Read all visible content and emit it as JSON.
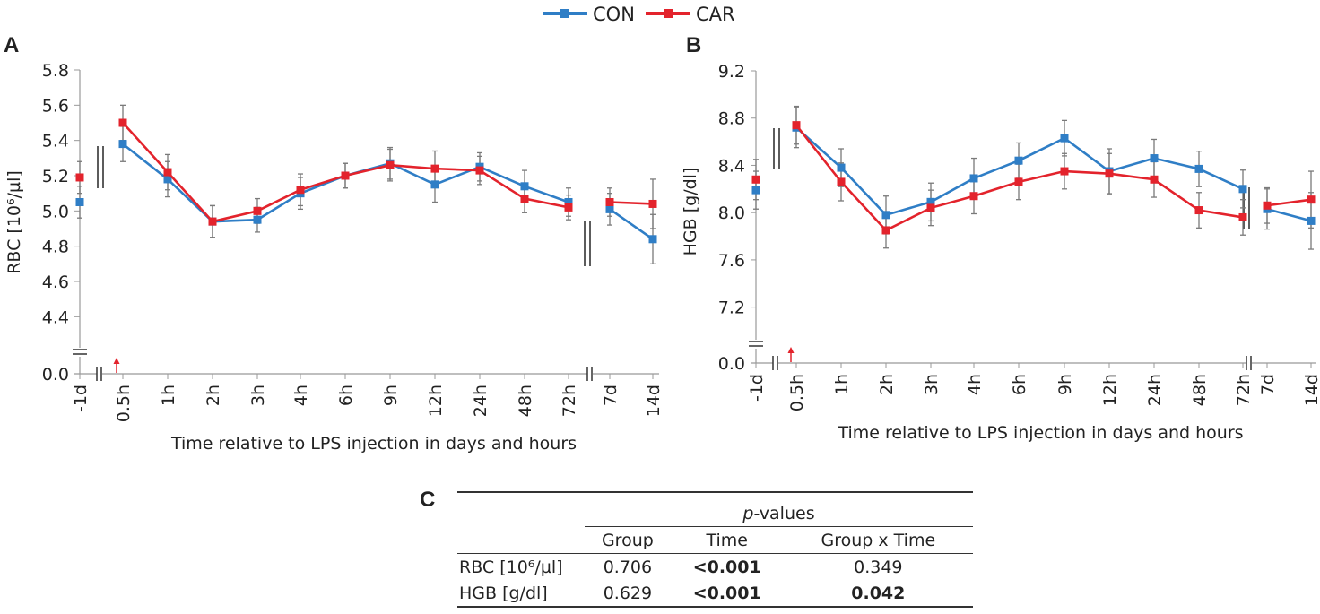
{
  "chart_data": {
    "legend": [
      {
        "name": "CON",
        "color": "#2f7ec6"
      },
      {
        "name": "CAR",
        "color": "#e3232c"
      }
    ],
    "xlabel": "Time relative to LPS injection in days and hours",
    "categories": [
      "-1d",
      "0.5h",
      "1h",
      "2h",
      "3h",
      "4h",
      "6h",
      "9h",
      "12h",
      "24h",
      "48h",
      "72h",
      "7d",
      "14d"
    ],
    "panels": [
      {
        "letter": "A",
        "type": "line",
        "ylabel": "RBC [10⁶/µl]",
        "ylim": [
          4.3,
          5.8
        ],
        "yticks": [
          "4.4",
          "4.6",
          "4.8",
          "5.0",
          "5.2",
          "5.4",
          "5.6",
          "5.8"
        ],
        "zero_label": "0.0",
        "series": [
          {
            "name": "CON",
            "values": [
              5.05,
              5.38,
              5.18,
              4.94,
              4.95,
              5.1,
              5.2,
              5.27,
              5.15,
              5.25,
              5.14,
              5.05,
              5.01,
              4.84
            ],
            "errors": [
              0.09,
              0.1,
              0.1,
              0.09,
              0.07,
              0.09,
              0.07,
              0.09,
              0.1,
              0.08,
              0.09,
              0.08,
              0.09,
              0.14
            ]
          },
          {
            "name": "CAR",
            "values": [
              5.19,
              5.5,
              5.22,
              4.94,
              5.0,
              5.12,
              5.2,
              5.26,
              5.24,
              5.23,
              5.07,
              5.02,
              5.05,
              5.04
            ],
            "errors": [
              0.09,
              0.1,
              0.1,
              0.09,
              0.07,
              0.09,
              0.07,
              0.09,
              0.1,
              0.08,
              0.08,
              0.07,
              0.08,
              0.14
            ]
          }
        ]
      },
      {
        "letter": "B",
        "type": "line",
        "ylabel": "HGB [g/dl]",
        "ylim": [
          7.0,
          9.2
        ],
        "yticks": [
          "7.2",
          "7.6",
          "8.0",
          "8.4",
          "8.8",
          "9.2"
        ],
        "zero_label": "0.0",
        "series": [
          {
            "name": "CON",
            "values": [
              8.19,
              8.72,
              8.38,
              7.98,
              8.09,
              8.29,
              8.44,
              8.63,
              8.35,
              8.46,
              8.37,
              8.2,
              8.03,
              7.93
            ],
            "errors": [
              0.16,
              0.17,
              0.16,
              0.16,
              0.16,
              0.17,
              0.15,
              0.15,
              0.19,
              0.16,
              0.15,
              0.16,
              0.17,
              0.24
            ]
          },
          {
            "name": "CAR",
            "values": [
              8.28,
              8.74,
              8.26,
              7.85,
              8.04,
              8.14,
              8.26,
              8.35,
              8.33,
              8.28,
              8.02,
              7.96,
              8.06,
              8.11
            ],
            "errors": [
              0.17,
              0.16,
              0.16,
              0.15,
              0.15,
              0.15,
              0.15,
              0.15,
              0.17,
              0.15,
              0.15,
              0.15,
              0.15,
              0.24
            ]
          }
        ]
      }
    ]
  },
  "table": {
    "letter": "C",
    "span_header": "p-values",
    "columns": [
      "Group",
      "Time",
      "Group x Time"
    ],
    "rows": [
      {
        "label": "RBC [10⁶/µl]",
        "values": [
          "0.706",
          "<0.001",
          "0.349"
        ],
        "bold": [
          false,
          true,
          false
        ]
      },
      {
        "label": "HGB [g/dl]",
        "values": [
          "0.629",
          "<0.001",
          "0.042"
        ],
        "bold": [
          false,
          true,
          true
        ]
      }
    ]
  }
}
